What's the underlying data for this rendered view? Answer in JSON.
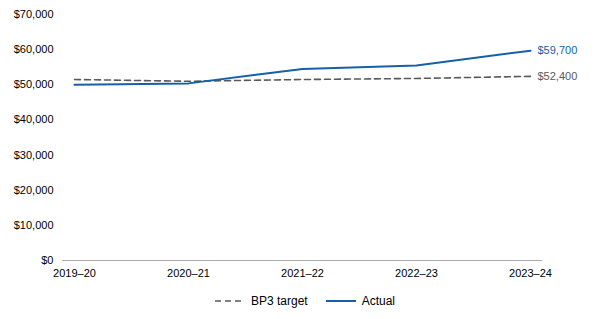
{
  "chart_data": {
    "type": "line",
    "categories": [
      "2019–20",
      "2020–21",
      "2021–22",
      "2022–23",
      "2023–24"
    ],
    "series": [
      {
        "name": "BP3 target",
        "color": "#595959",
        "line_style": "dashed",
        "values": [
          51500,
          51000,
          51500,
          51800,
          52400
        ]
      },
      {
        "name": "Actual",
        "color": "#1560a8",
        "line_style": "solid",
        "values": [
          50000,
          50400,
          54500,
          55500,
          59700
        ]
      }
    ],
    "annotations": [
      {
        "text": "$59,700",
        "x": "2023–24",
        "y": 59700,
        "color": "#1560a8"
      },
      {
        "text": "$52,400",
        "x": "2023–24",
        "y": 52400,
        "color": "#595959"
      }
    ],
    "ylim": [
      0,
      70000
    ],
    "yticks": [
      {
        "value": 0,
        "label": "$0"
      },
      {
        "value": 10000,
        "label": "$10,000"
      },
      {
        "value": 20000,
        "label": "$20,000"
      },
      {
        "value": 30000,
        "label": "$30,000"
      },
      {
        "value": 40000,
        "label": "$40,000"
      },
      {
        "value": 50000,
        "label": "$50,000"
      },
      {
        "value": 60000,
        "label": "$60,000"
      },
      {
        "value": 70000,
        "label": "$70,000"
      }
    ],
    "grid": false,
    "legend": "bottom"
  }
}
